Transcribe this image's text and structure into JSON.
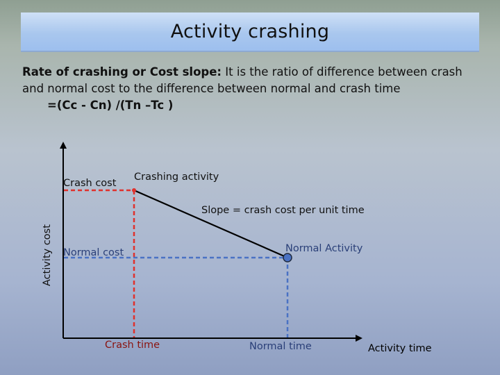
{
  "slide": {
    "title": "Activity crashing",
    "definition_term": "Rate of crashing or Cost slope:",
    "definition_text": " It is the ratio of difference between crash and normal cost to the difference between normal and crash time",
    "formula": "=(Cc - Cn) /(Tn –Tc )"
  },
  "diagram": {
    "y_axis_label": "Activity cost",
    "x_axis_label": "Activity time",
    "crash_cost_label": "Crash cost",
    "normal_cost_label": "Normal cost",
    "crash_time_label": "Crash time",
    "normal_time_label": "Normal time",
    "crashing_activity_label": "Crashing activity",
    "normal_activity_label": "Normal Activity",
    "slope_label": "Slope = crash cost per unit time",
    "colors": {
      "crash_dashes": "#e0312c",
      "normal_dashes": "#4a72c4",
      "normal_point_fill": "#4a72c4",
      "crash_point_fill": "#e0312c"
    }
  }
}
